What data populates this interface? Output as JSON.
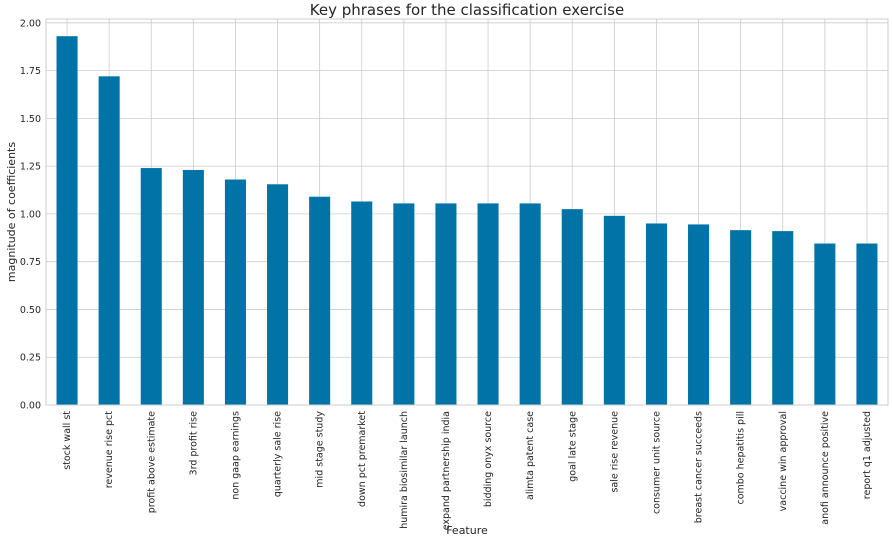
{
  "chart_data": {
    "type": "bar",
    "title": "Key phrases for the classification exercise",
    "xlabel": "Feature",
    "ylabel": "magnitude of coefficients",
    "ylim": [
      0,
      2.02
    ],
    "yticks": [
      "0.00",
      "0.25",
      "0.50",
      "0.75",
      "1.00",
      "1.25",
      "1.50",
      "1.75",
      "2.00"
    ],
    "ytick_values": [
      0,
      0.25,
      0.5,
      0.75,
      1.0,
      1.25,
      1.5,
      1.75,
      2.0
    ],
    "grid": true,
    "bar_color": "#0173a6",
    "categories": [
      "stock wall st",
      "revenue rise pct",
      "profit above estimate",
      "3rd profit rise",
      "non gaap earnings",
      "quarterly sale rise",
      "mid stage study",
      "down pct premarket",
      "humira biosimilar launch",
      "expand partnership india",
      "bidding onyx source",
      "alimta patent case",
      "goal late stage",
      "sale rise revenue",
      "consumer unit source",
      "breast cancer succeeds",
      "combo hepatitis pill",
      "vaccine win approval",
      "anofi announce positive",
      "report q1 adjusted"
    ],
    "values": [
      1.93,
      1.72,
      1.24,
      1.23,
      1.18,
      1.155,
      1.09,
      1.065,
      1.055,
      1.055,
      1.055,
      1.055,
      1.025,
      0.99,
      0.95,
      0.945,
      0.915,
      0.91,
      0.845,
      0.845
    ]
  }
}
